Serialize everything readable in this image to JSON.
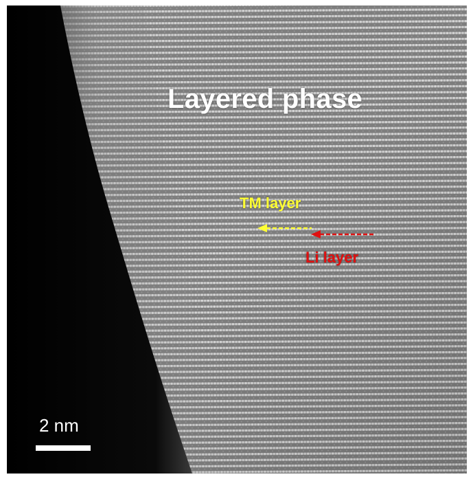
{
  "image": {
    "subject": "electron-micrograph",
    "colors": {
      "background_vacuum": "#050505",
      "lattice_base": "#8e8e8e",
      "lattice_highlight": "#e8e8e8",
      "title_text": "#ffffff",
      "tm_text": "#ffff33",
      "li_text": "#e01010",
      "scale_bar": "#ffffff"
    }
  },
  "labels": {
    "title": "Layered phase",
    "tm_layer": "TM layer",
    "li_layer": "Li layer"
  },
  "arrows": {
    "tm_arrow_direction": "left",
    "li_arrow_direction": "left"
  },
  "scale_bar": {
    "label": "2 nm"
  }
}
